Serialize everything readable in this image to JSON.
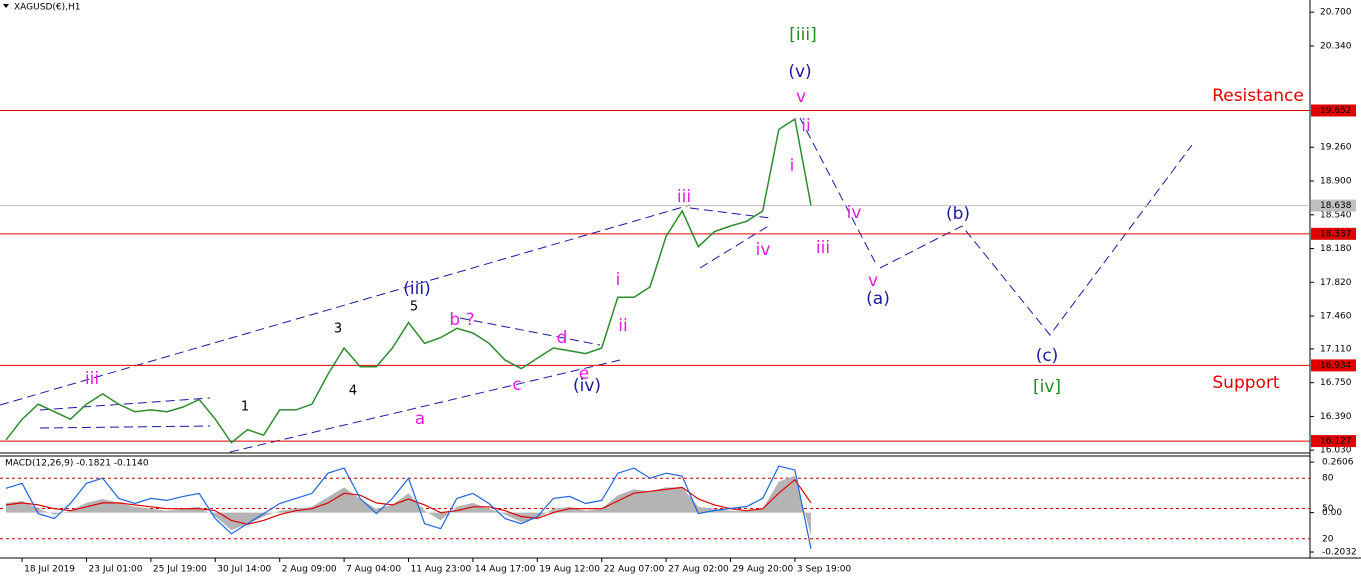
{
  "chart_data": {
    "type": "line",
    "title": "XAGUSD(€),H1",
    "categories": [
      null,
      "18 Jul 2019",
      null,
      null,
      null,
      "23 Jul 01:00",
      null,
      null,
      null,
      "25 Jul 19:00",
      null,
      null,
      null,
      "30 Jul 14:00",
      null,
      null,
      null,
      "2 Aug 09:00",
      null,
      null,
      null,
      "7 Aug 04:00",
      null,
      null,
      null,
      "11 Aug 23:00",
      null,
      null,
      null,
      "14 Aug 17:00",
      null,
      null,
      null,
      "19 Aug 12:00",
      null,
      null,
      null,
      "22 Aug 07:00",
      null,
      null,
      null,
      "27 Aug 02:00",
      null,
      null,
      null,
      "29 Aug 20:00",
      null,
      null,
      null,
      "3 Sep 19:00",
      null
    ],
    "series": [
      {
        "color": "#2e8b2e",
        "values": [
          16.14,
          16.36,
          16.52,
          16.44,
          16.36,
          16.52,
          16.63,
          16.52,
          16.44,
          16.46,
          16.44,
          16.49,
          16.57,
          16.36,
          16.11,
          16.25,
          16.19,
          16.46,
          16.46,
          16.52,
          16.84,
          17.12,
          16.92,
          16.92,
          17.12,
          17.39,
          17.17,
          17.23,
          17.33,
          17.28,
          17.17,
          16.99,
          16.9,
          17.01,
          17.12,
          17.09,
          17.06,
          17.12,
          17.66,
          17.66,
          17.77,
          18.31,
          18.58,
          18.2,
          18.36,
          18.42,
          18.47,
          18.58,
          19.45,
          19.56,
          18.64
        ]
      }
    ],
    "ylim": [
      16.0,
      20.83
    ],
    "yticks": [
      {
        "value": 20.7,
        "label": "20.700"
      },
      {
        "value": 20.34,
        "label": "20.340"
      },
      {
        "value": 19.26,
        "label": "19.260"
      },
      {
        "value": 18.9,
        "label": "18.900"
      },
      {
        "value": 18.54,
        "label": "18.540"
      },
      {
        "value": 18.18,
        "label": "18.180"
      },
      {
        "value": 17.82,
        "label": "17.820"
      },
      {
        "value": 17.46,
        "label": "17.460"
      },
      {
        "value": 17.11,
        "label": "17.110"
      },
      {
        "value": 16.75,
        "label": "16.750"
      },
      {
        "value": 16.39,
        "label": "16.390"
      },
      {
        "value": 16.03,
        "label": "16.030"
      }
    ],
    "levels": [
      {
        "value": 19.652,
        "color": "#e00000",
        "label_color": "#ffffff"
      },
      {
        "value": 18.638,
        "color": "#c0c0c0",
        "label_color": "#000000"
      },
      {
        "value": 18.337,
        "color": "#e00000",
        "label_color": "#ffffff"
      },
      {
        "value": 16.934,
        "color": "#e00000",
        "label_color": "#ffffff"
      },
      {
        "value": 16.127,
        "color": "#e00000",
        "label_color": "#ffffff"
      }
    ],
    "annotations": [
      {
        "text": "[iii]",
        "color": "#228b22"
      },
      {
        "text": "(v)",
        "color": "#1a1aa0"
      },
      {
        "text": "v",
        "color": "#e020e0"
      },
      {
        "text": "ii",
        "color": "#e020e0"
      },
      {
        "text": "i",
        "color": "#e020e0"
      },
      {
        "text": "iii",
        "color": "#e020e0"
      },
      {
        "text": "iv",
        "color": "#e020e0"
      },
      {
        "text": "iii",
        "color": "#e020e0"
      },
      {
        "text": "iv",
        "color": "#e020e0"
      },
      {
        "text": "(b)",
        "color": "#1a1aa0"
      },
      {
        "text": "v",
        "color": "#e020e0"
      },
      {
        "text": "(a)",
        "color": "#1a1aa0"
      },
      {
        "text": "i",
        "color": "#e020e0"
      },
      {
        "text": "ii",
        "color": "#e020e0"
      },
      {
        "text": "(iii)",
        "color": "#1a1aa0"
      },
      {
        "text": "5",
        "color": "#000000"
      },
      {
        "text": "3",
        "color": "#000000"
      },
      {
        "text": "4",
        "color": "#000000"
      },
      {
        "text": "b ?",
        "color": "#e020e0"
      },
      {
        "text": "d",
        "color": "#e020e0"
      },
      {
        "text": "e",
        "color": "#e020e0"
      },
      {
        "text": "(iv)",
        "color": "#1a1aa0"
      },
      {
        "text": "c",
        "color": "#e020e0"
      },
      {
        "text": "a",
        "color": "#e020e0"
      },
      {
        "text": "1",
        "color": "#000000"
      },
      {
        "text": "iii",
        "color": "#e020e0"
      },
      {
        "text": "(c)",
        "color": "#1a1aa0"
      },
      {
        "text": "[iv]",
        "color": "#228b22"
      },
      {
        "text": "Resistance",
        "color": "#e00000"
      },
      {
        "text": "Support",
        "color": "#e00000"
      }
    ],
    "indicator": {
      "title": "MACD(12,26,9) -0.1821 -0.1140",
      "ylim": [
        -0.234,
        0.292
      ],
      "yticks": [
        0.2606,
        {
          "value": 0,
          "label": "0.00"
        },
        -0.2032
      ],
      "y2lim": [
        1,
        102
      ],
      "y2ticks": [
        80,
        50,
        20
      ],
      "series": [
        {
          "type": "area",
          "color": "#b4b4b4",
          "values": [
            0.05,
            0.06,
            0.02,
            -0.01,
            0.01,
            0.05,
            0.07,
            0.05,
            0.03,
            0.02,
            0.01,
            0.02,
            0.03,
            -0.02,
            -0.09,
            -0.06,
            -0.02,
            0.01,
            0.02,
            0.03,
            0.08,
            0.13,
            0.07,
            0.02,
            0.04,
            0.1,
            0.01,
            -0.04,
            0.03,
            0.05,
            0.02,
            -0.01,
            -0.05,
            -0.03,
            0.02,
            0.03,
            0.01,
            0.02,
            0.09,
            0.12,
            0.11,
            0.13,
            0.13,
            0.03,
            0.02,
            0.01,
            0.01,
            0.02,
            0.16,
            0.19,
            -0.12
          ]
        },
        {
          "type": "line",
          "color": "#e00000",
          "values": [
            0.04,
            0.05,
            0.04,
            0.02,
            0.01,
            0.03,
            0.05,
            0.05,
            0.04,
            0.03,
            0.02,
            0.02,
            0.02,
            0.01,
            -0.04,
            -0.06,
            -0.04,
            -0.01,
            0.01,
            0.02,
            0.05,
            0.1,
            0.09,
            0.05,
            0.04,
            0.07,
            0.04,
            0,
            0.01,
            0.03,
            0.03,
            0.01,
            -0.02,
            -0.03,
            0,
            0.02,
            0.02,
            0.02,
            0.06,
            0.1,
            0.11,
            0.12,
            0.13,
            0.07,
            0.04,
            0.02,
            0.01,
            0.02,
            0.1,
            0.17,
            0.05
          ]
        },
        {
          "type": "line",
          "axis": "y2",
          "color": "#1e64dc",
          "values": [
            70,
            75,
            45,
            40,
            55,
            75,
            80,
            60,
            55,
            60,
            58,
            62,
            65,
            40,
            25,
            35,
            45,
            55,
            60,
            65,
            85,
            90,
            60,
            45,
            60,
            80,
            35,
            30,
            60,
            65,
            55,
            40,
            35,
            42,
            60,
            62,
            55,
            58,
            85,
            90,
            80,
            85,
            82,
            45,
            48,
            50,
            52,
            60,
            92,
            88,
            10
          ]
        }
      ]
    }
  }
}
